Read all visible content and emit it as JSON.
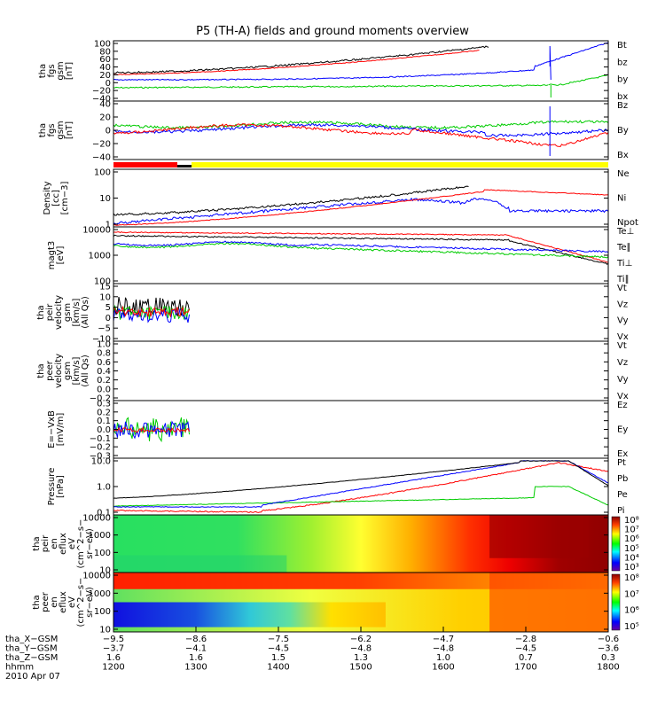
{
  "title": "P5 (TH-A) fields and ground moments overview",
  "colors": {
    "black": "#000000",
    "red": "#ff0000",
    "green": "#00cc00",
    "blue": "#0000ff",
    "yellow": "#ffff00"
  },
  "chart_data": {
    "type": "line",
    "panels": [
      {
        "ylabel": [
          "tha",
          "fgs",
          "gsm",
          "[nT]"
        ],
        "ticks": [
          "100",
          "80",
          "60",
          "40",
          "20",
          "0",
          "−20",
          "−40"
        ],
        "legend": [
          {
            "name": "Bt",
            "color": "black"
          },
          {
            "name": "bz",
            "color": "red"
          },
          {
            "name": "by",
            "color": "green"
          },
          {
            "name": "bx",
            "color": "blue"
          }
        ]
      },
      {
        "ylabel": [
          "tha",
          "fgs",
          "gsm",
          "[nT]"
        ],
        "ticks": [
          "40",
          "20",
          "0",
          "−20",
          "−40"
        ],
        "legend": [
          {
            "name": "Bz",
            "color": "red"
          },
          {
            "name": "By",
            "color": "green"
          },
          {
            "name": "Bx",
            "color": "blue"
          }
        ]
      },
      {
        "ylabel": [
          "Density",
          "[cc]",
          "[cm−3]"
        ],
        "ticks": [
          "100",
          "10",
          "1"
        ],
        "legend": [
          {
            "name": "Ne",
            "color": "red"
          },
          {
            "name": "Ni",
            "color": "black"
          },
          {
            "name": "Npot",
            "color": "blue"
          }
        ]
      },
      {
        "ylabel": [
          "magt3",
          "[eV]"
        ],
        "ticks": [
          "10000",
          "1000",
          "100"
        ],
        "legend": [
          {
            "name": "Te⊥",
            "color": "red"
          },
          {
            "name": "Te∥",
            "color": "black"
          },
          {
            "name": "Ti⊥",
            "color": "blue"
          },
          {
            "name": "Ti∥",
            "color": "green"
          }
        ]
      },
      {
        "ylabel": [
          "tha",
          "peir",
          "velocity",
          "gsm",
          "[km/s]",
          "(All Qs)"
        ],
        "ticks": [
          "15",
          "10",
          "5",
          "0",
          "−5",
          "−10"
        ],
        "legend": [
          {
            "name": "Vt",
            "color": "black"
          },
          {
            "name": "Vz",
            "color": "red"
          },
          {
            "name": "Vy",
            "color": "green"
          },
          {
            "name": "Vx",
            "color": "blue"
          }
        ]
      },
      {
        "ylabel": [
          "tha",
          "peer",
          "velocity",
          "gsm",
          "[km/s]",
          "(All Qs)"
        ],
        "ticks": [
          "1.0",
          "0.8",
          "0.6",
          "0.4",
          "0.2",
          "0.0",
          "−0.2"
        ],
        "legend": [
          {
            "name": "Vt",
            "color": "black"
          },
          {
            "name": "Vz",
            "color": "red"
          },
          {
            "name": "Vy",
            "color": "green"
          },
          {
            "name": "Vx",
            "color": "blue"
          }
        ]
      },
      {
        "ylabel": [
          "E=−VxB",
          "[mV/m]"
        ],
        "ticks": [
          "0.3",
          "0.2",
          "0.1",
          "0.0",
          "−0.1",
          "−0.2",
          "−0.3"
        ],
        "legend": [
          {
            "name": "Ez",
            "color": "red"
          },
          {
            "name": "Ey",
            "color": "green"
          },
          {
            "name": "Ex",
            "color": "blue"
          }
        ]
      },
      {
        "ylabel": [
          "Pressure",
          "[nPa]"
        ],
        "ticks": [
          "10.0",
          "1.0",
          "0.1"
        ],
        "legend": [
          {
            "name": "Pt",
            "color": "black"
          },
          {
            "name": "Pb",
            "color": "red"
          },
          {
            "name": "Pe",
            "color": "green"
          },
          {
            "name": "Pi",
            "color": "blue"
          }
        ]
      },
      {
        "ylabel": [
          "tha",
          "peir",
          "en",
          "eflux",
          "eV",
          "(cm^2−s−",
          "sr−eV)"
        ],
        "ticks": [
          "10000",
          "1000",
          "100",
          "10"
        ],
        "colorbar": [
          "10⁸",
          "10⁷",
          "10⁶",
          "10⁵",
          "10⁴",
          "10³"
        ]
      },
      {
        "ylabel": [
          "tha",
          "peer",
          "en",
          "eflux",
          "eV",
          "(cm^2−s−",
          "sr−eV)"
        ],
        "ticks": [
          "10000",
          "1000",
          "100",
          "10"
        ],
        "colorbar": [
          "10⁸",
          "10⁷",
          "10⁶",
          "10⁵"
        ]
      }
    ],
    "x_axis": {
      "rows": [
        {
          "label": "tha_X−GSM",
          "values": [
            "−9.5",
            "−8.6",
            "−7.5",
            "−6.2",
            "−4.7",
            "−2.8",
            "−0.6"
          ]
        },
        {
          "label": "tha_Y−GSM",
          "values": [
            "−3.7",
            "−4.1",
            "−4.5",
            "−4.8",
            "−4.8",
            "−4.5",
            "−3.6"
          ]
        },
        {
          "label": "tha_Z−GSM",
          "values": [
            "1.6",
            "1.6",
            "1.5",
            "1.3",
            "1.0",
            "0.7",
            "0.3"
          ]
        },
        {
          "label": "hhmm",
          "values": [
            "1200",
            "1300",
            "1400",
            "1500",
            "1600",
            "1700",
            "1800"
          ]
        }
      ],
      "date": "2010 Apr 07"
    }
  }
}
